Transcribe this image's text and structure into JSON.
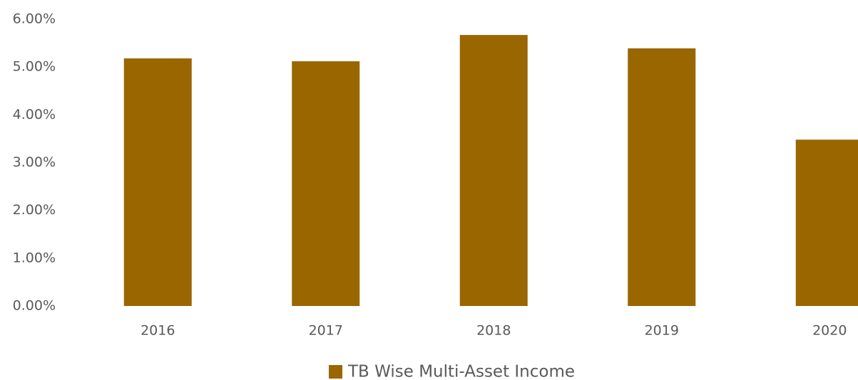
{
  "chart_data": {
    "type": "bar",
    "categories": [
      "2016",
      "2017",
      "2018",
      "2019",
      "2020"
    ],
    "series": [
      {
        "name": "TB Wise Multi-Asset Income",
        "color": "#996600",
        "values": [
          5.18,
          5.12,
          5.67,
          5.39,
          3.48
        ]
      }
    ],
    "ylim": [
      0,
      6
    ],
    "yticks": [
      {
        "value": 0,
        "label": "0.00%"
      },
      {
        "value": 1,
        "label": "1.00%"
      },
      {
        "value": 2,
        "label": "2.00%"
      },
      {
        "value": 3,
        "label": "3.00%"
      },
      {
        "value": 4,
        "label": "4.00%"
      },
      {
        "value": 5,
        "label": "5.00%"
      },
      {
        "value": 6,
        "label": "6.00%"
      }
    ],
    "grid": false,
    "legend": "bottom"
  }
}
